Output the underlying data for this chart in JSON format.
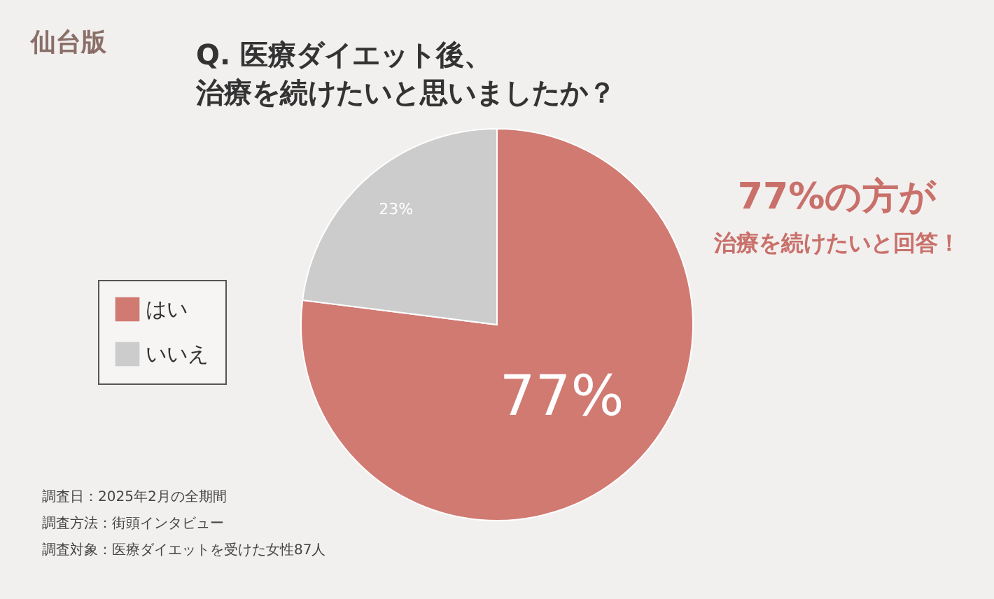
{
  "chart_data": {
    "type": "pie",
    "title": "Q. 医療ダイエット後、",
    "subtitle": "治療を続けたいと思いましたか？",
    "categories": [
      "はい",
      "いいえ"
    ],
    "values": [
      77,
      23
    ],
    "colors": [
      "#d07a72",
      "#cccccc"
    ],
    "value_labels": [
      "77%",
      "23%"
    ],
    "legend": "left",
    "annotations": [
      "仙台版",
      "77%の方が",
      "治療を続けたいと回答！",
      "調査日：2025年2月の全期間",
      "調査方法：街頭インタビュー",
      "調査対象：医療ダイエットを受けた女性87人"
    ]
  }
}
